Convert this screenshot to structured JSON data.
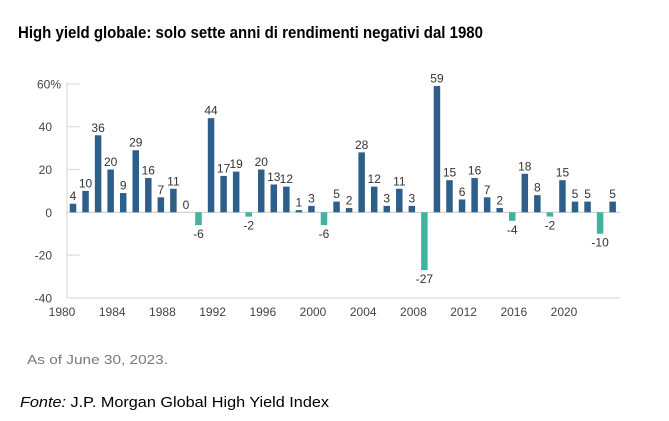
{
  "chart_data": {
    "type": "bar",
    "title": "High yield globale: solo sette anni di rendimenti negativi dal 1980",
    "xlabel": "",
    "ylabel": "",
    "ylim": [
      -40,
      60
    ],
    "grid": false,
    "legend": "none",
    "categories": [
      1980,
      1981,
      1982,
      1983,
      1984,
      1985,
      1986,
      1987,
      1988,
      1989,
      1990,
      1991,
      1992,
      1993,
      1994,
      1995,
      1996,
      1997,
      1998,
      1999,
      2000,
      2001,
      2002,
      2003,
      2004,
      2005,
      2006,
      2007,
      2008,
      2009,
      2010,
      2011,
      2012,
      2013,
      2014,
      2015,
      2016,
      2017,
      2018,
      2019,
      2020,
      2021,
      2022,
      2023
    ],
    "values": [
      4,
      10,
      36,
      20,
      9,
      29,
      16,
      7,
      11,
      0,
      -6,
      44,
      17,
      19,
      -2,
      20,
      13,
      12,
      1,
      3,
      -6,
      5,
      2,
      28,
      12,
      3,
      11,
      3,
      -27,
      59,
      15,
      6,
      16,
      7,
      2,
      -4,
      18,
      8,
      -2,
      15,
      5,
      5,
      -10,
      5
    ],
    "data_labels": [
      "4",
      "10",
      "36",
      "20",
      "9",
      "29",
      "16",
      "7",
      "11",
      "0",
      "-6",
      "44",
      "17",
      "19",
      "-2",
      "20",
      "13",
      "12",
      "1",
      "3",
      "-6",
      "5",
      "2",
      "28",
      "12",
      "3",
      "11",
      "3",
      "-27",
      "59",
      "15",
      "6",
      "16",
      "7",
      "2",
      "-4",
      "18",
      "8",
      "-2",
      "15",
      "5",
      "5",
      "-10",
      "5"
    ],
    "yticks": [
      {
        "value": 60,
        "label": "60%"
      },
      {
        "value": 40,
        "label": "40"
      },
      {
        "value": 20,
        "label": "20"
      },
      {
        "value": 0,
        "label": "0"
      },
      {
        "value": -20,
        "label": "-20"
      },
      {
        "value": -40,
        "label": "-40"
      }
    ],
    "xticks": [
      {
        "value": 1980,
        "label": "1980"
      },
      {
        "value": 1984,
        "label": "1984"
      },
      {
        "value": 1988,
        "label": "1988"
      },
      {
        "value": 1992,
        "label": "1992"
      },
      {
        "value": 1996,
        "label": "1996"
      },
      {
        "value": 2000,
        "label": "2000"
      },
      {
        "value": 2004,
        "label": "2004"
      },
      {
        "value": 2008,
        "label": "2008"
      },
      {
        "value": 2012,
        "label": "2012"
      },
      {
        "value": 2016,
        "label": "2016"
      },
      {
        "value": 2020,
        "label": "2020"
      }
    ],
    "colors": {
      "positive": "#2e5f8a",
      "negative": "#3fb39e"
    }
  },
  "footnote": {
    "as_of": "As of June 30, 2023.",
    "source_prefix": "Fonte:",
    "source_text": " J.P. Morgan Global High Yield Index"
  }
}
